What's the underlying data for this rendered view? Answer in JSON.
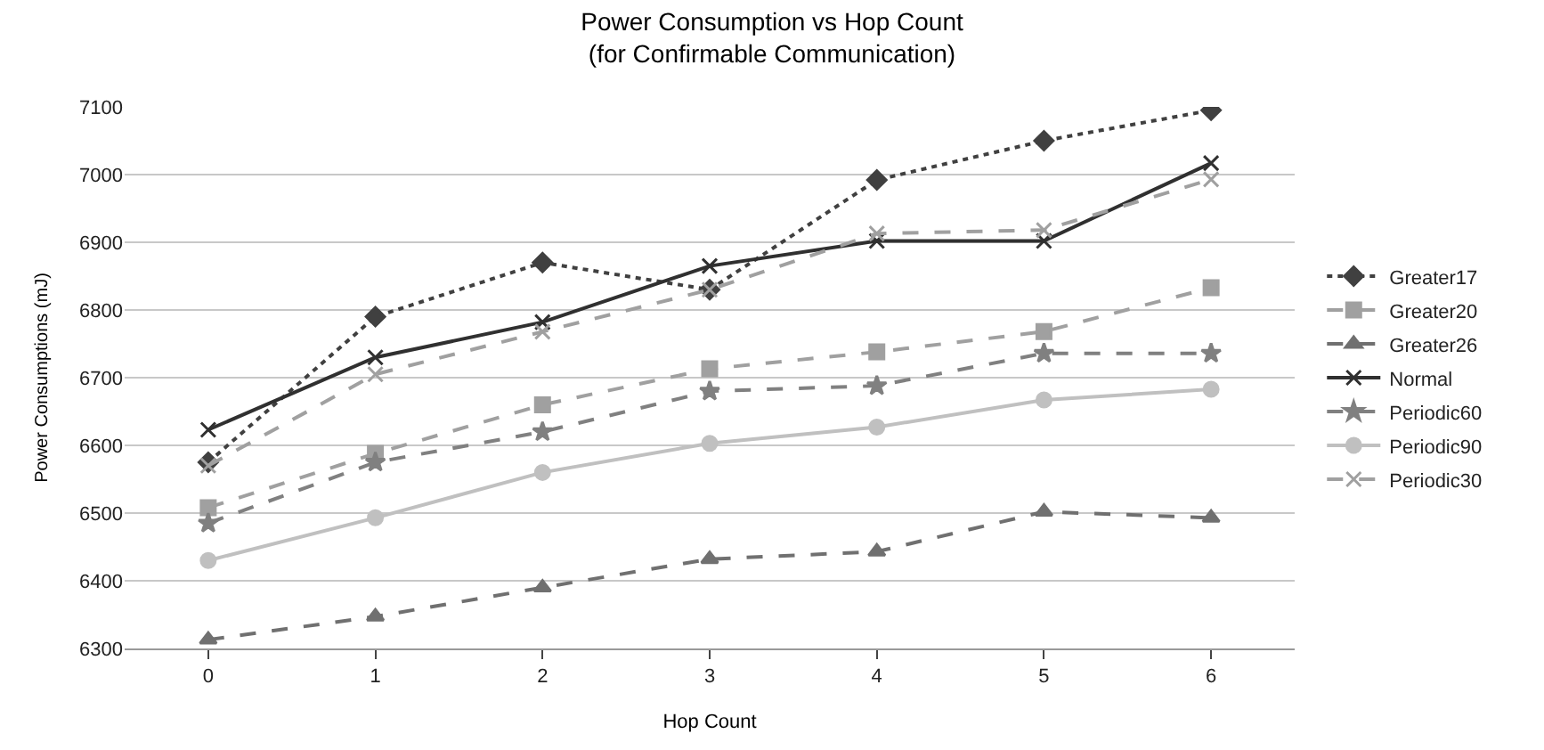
{
  "chart_data": {
    "type": "line",
    "title": "Power Consumption vs Hop Count\n(for Confirmable Communication)",
    "xlabel": "Hop Count",
    "ylabel": "Power Consumptions (mJ)",
    "categories": [
      "0",
      "1",
      "2",
      "3",
      "4",
      "5",
      "6"
    ],
    "ylim": [
      6300,
      7100
    ],
    "yticks": [
      6300,
      6400,
      6500,
      6600,
      6700,
      6800,
      6900,
      7000,
      7100
    ],
    "grid": "y",
    "legend": "right",
    "series": [
      {
        "name": "Greater17",
        "color": "#404040",
        "marker": "diamond",
        "line_style": "dotted",
        "values": [
          6575,
          6790,
          6870,
          6830,
          6992,
          7050,
          7095
        ]
      },
      {
        "name": "Greater20",
        "color": "#a0a0a0",
        "marker": "square",
        "line_style": "dashed",
        "values": [
          6508,
          6588,
          6660,
          6713,
          6738,
          6768,
          6833
        ]
      },
      {
        "name": "Greater26",
        "color": "#707070",
        "marker": "triangle",
        "line_style": "dashed",
        "values": [
          6313,
          6347,
          6390,
          6432,
          6443,
          6502,
          6493
        ]
      },
      {
        "name": "Normal",
        "color": "#303030",
        "marker": "cross",
        "line_style": "solid",
        "values": [
          6623,
          6730,
          6782,
          6865,
          6902,
          6902,
          7017
        ]
      },
      {
        "name": "Periodic60",
        "color": "#808080",
        "marker": "star",
        "line_style": "dashed",
        "values": [
          6485,
          6575,
          6620,
          6680,
          6688,
          6736,
          6736
        ]
      },
      {
        "name": "Periodic90",
        "color": "#c0c0c0",
        "marker": "circle",
        "line_style": "solid",
        "values": [
          6430,
          6493,
          6560,
          6603,
          6627,
          6667,
          6683
        ]
      },
      {
        "name": "Periodic30",
        "color": "#a0a0a0",
        "marker": "cross",
        "line_style": "dashed",
        "values": [
          6570,
          6705,
          6768,
          6830,
          6913,
          6918,
          6993
        ]
      }
    ]
  }
}
